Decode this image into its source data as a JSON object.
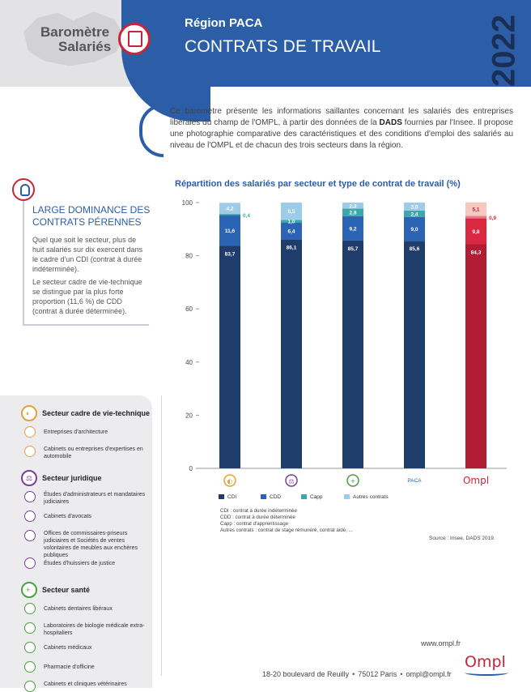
{
  "header": {
    "logo_line1": "Baromètre",
    "logo_line2": "Salariés",
    "region": "Région PACA",
    "title": "CONTRATS DE TRAVAIL",
    "year": "2022"
  },
  "intro": {
    "part1": "Ce baromètre présente les informations saillantes concernant les salariés des entreprises libérales du champ de l'OMPL, à partir des données de la ",
    "dads": "DADS",
    "part2": " fournies par l'Insee. Il propose une photographie comparative des caractéristiques et des conditions d'emploi des salariés au niveau de l'OMPL et de chacun des trois secteurs dans la région."
  },
  "note": {
    "title": "LARGE DOMINANCE DES CONTRATS PÉRENNES",
    "p1": "Quel que soit le secteur, plus de huit salariés sur dix exercent dans le cadre d'un CDI (contrat à durée indéterminée).",
    "p2": "Le secteur cadre de vie-technique se distingue par la plus forte proportion (11,6 %) de CDD (contrat à durée déterminée)."
  },
  "sectors": [
    {
      "name": "Secteur cadre de vie-technique",
      "color": "#e8a13a",
      "items": [
        "Entreprises d'architecture",
        "Cabinets ou entreprises d'expertises en automobile"
      ]
    },
    {
      "name": "Secteur juridique",
      "color": "#7b3f98",
      "items": [
        "Études d'administrateurs et mandataires judiciaires",
        "Cabinets d'avocats",
        "Offices de commissaires-priseurs judiciaires et Sociétés de ventes volontaires de meubles aux enchères publiques",
        "Études d'huissiers de justice"
      ]
    },
    {
      "name": "Secteur santé",
      "color": "#4aa03f",
      "items": [
        "Cabinets dentaires libéraux",
        "Laboratoires de biologie médicale extra-hospitaliers",
        "Cabinets médicaux",
        "Pharmacie d'officine",
        "Cabinets et cliniques vétérinaires"
      ]
    }
  ],
  "chart_data": {
    "type": "bar",
    "stacked": true,
    "title": "Répartition des salariés par secteur et type de contrat de travail (%)",
    "ylim": [
      0,
      100
    ],
    "yticks": [
      0,
      20,
      40,
      60,
      80,
      100
    ],
    "categories": [
      "Secteur cadre de vie-technique",
      "Secteur juridique",
      "Secteur santé",
      "PACA",
      "Ompl"
    ],
    "category_labels": [
      "",
      "",
      "",
      "PACA",
      "Ompl"
    ],
    "series": [
      {
        "name": "CDI",
        "values": [
          83.7,
          86.1,
          85.7,
          85.6,
          84.3
        ],
        "labels": [
          "83,7",
          "86,1",
          "85,7",
          "85,6",
          "84,3"
        ]
      },
      {
        "name": "CDD",
        "values": [
          11.6,
          6.4,
          9.2,
          9.0,
          9.8
        ],
        "labels": [
          "11,6",
          "6,4",
          "9,2",
          "9,0",
          "9,8"
        ]
      },
      {
        "name": "Capp",
        "values": [
          0.4,
          1.0,
          2.8,
          2.4,
          0.9
        ],
        "labels": [
          "0,4",
          "1,0",
          "2,8",
          "2,4",
          "0,9"
        ]
      },
      {
        "name": "Autres contrats",
        "values": [
          4.2,
          6.5,
          2.3,
          3.0,
          5.1
        ],
        "labels": [
          "4,2",
          "6,5",
          "2,3",
          "3,0",
          "5,1"
        ]
      }
    ],
    "colors": {
      "default": [
        "#1f3d6b",
        "#2b63b5",
        "#3aa9a8",
        "#9ecbe8"
      ],
      "ompl": [
        "#b01c33",
        "#d9283f",
        "#e77c8c",
        "#f3c9c0"
      ]
    },
    "definitions": [
      "CDI : contrat à durée indéterminée",
      "CDD : contrat à durée déterminée",
      "Capp : contrat d'apprentissage",
      "Autres contrats : contrat de stage rémunéré, contrat aidé, ..."
    ],
    "source": "Source : Insee, DADS 2019."
  },
  "footer": {
    "url": "www.ompl.fr",
    "address": "18-20 boulevard de Reuilly",
    "city": "75012 Paris",
    "email": "ompl@ompl.fr",
    "logo": "Ompl"
  }
}
